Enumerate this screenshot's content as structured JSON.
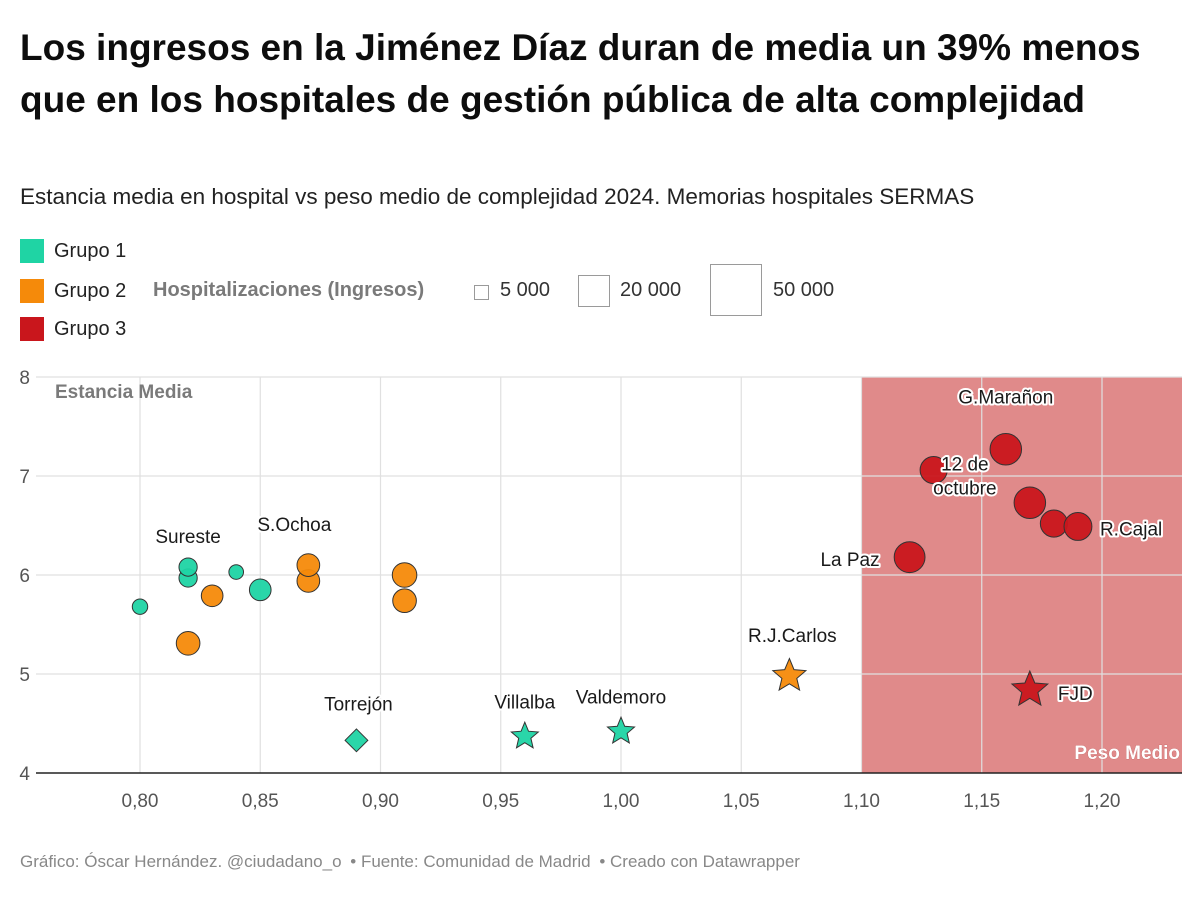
{
  "title": "Los ingresos en la Jiménez Díaz duran de media un 39% menos que en los hospitales de gestión pública de alta complejidad",
  "subtitle": "Estancia media en hospital vs peso medio de complejidad 2024. Memorias hospitales SERMAS",
  "legend": {
    "groups": [
      {
        "label": "Grupo 1",
        "color": "#1fd4a4"
      },
      {
        "label": "Grupo 2",
        "color": "#f58a0a"
      },
      {
        "label": "Grupo 3",
        "color": "#c9161c"
      }
    ],
    "size_title": "Hospitalizaciones (Ingresos)",
    "size_labels": [
      "5 000",
      "20 000",
      "50 000"
    ]
  },
  "footer": {
    "credit": "Gráfico: Óscar Hernández. @ciudadano_o",
    "source": "• Fuente: Comunidad de Madrid",
    "tool": "• Creado con Datawrapper"
  },
  "chart_data": {
    "type": "scatter",
    "ylabel": "Estancia Media",
    "xlabel": "Peso Medio",
    "xlim": [
      0.765,
      1.23
    ],
    "ylim": [
      4,
      8
    ],
    "x_ticks": [
      "0,80",
      "0,85",
      "0,90",
      "0,95",
      "1,00",
      "1,05",
      "1,10",
      "1,15",
      "1,20"
    ],
    "y_ticks": [
      "4",
      "5",
      "6",
      "7",
      "8"
    ],
    "grid": true,
    "highlight_region": {
      "x_from": 1.1,
      "x_to": 1.23,
      "y_from": 4,
      "y_to": 8,
      "color": "#e08a8a"
    },
    "points": [
      {
        "group": 1,
        "x": 0.8,
        "y": 5.68,
        "ingresos": 8000,
        "shape": "circle",
        "label": ""
      },
      {
        "group": 1,
        "x": 0.82,
        "y": 5.97,
        "ingresos": 12000,
        "shape": "circle",
        "label": ""
      },
      {
        "group": 1,
        "x": 0.82,
        "y": 6.08,
        "ingresos": 12000,
        "shape": "circle",
        "label": "Sureste"
      },
      {
        "group": 1,
        "x": 0.84,
        "y": 6.03,
        "ingresos": 7000,
        "shape": "circle",
        "label": ""
      },
      {
        "group": 1,
        "x": 0.85,
        "y": 5.85,
        "ingresos": 18000,
        "shape": "circle",
        "label": ""
      },
      {
        "group": 2,
        "x": 0.82,
        "y": 5.31,
        "ingresos": 22000,
        "shape": "circle",
        "label": ""
      },
      {
        "group": 2,
        "x": 0.83,
        "y": 5.79,
        "ingresos": 18000,
        "shape": "circle",
        "label": ""
      },
      {
        "group": 2,
        "x": 0.87,
        "y": 5.94,
        "ingresos": 20000,
        "shape": "circle",
        "label": ""
      },
      {
        "group": 2,
        "x": 0.87,
        "y": 6.1,
        "ingresos": 20000,
        "shape": "circle",
        "label": "S.Ochoa"
      },
      {
        "group": 2,
        "x": 0.91,
        "y": 6.0,
        "ingresos": 24000,
        "shape": "circle",
        "label": ""
      },
      {
        "group": 2,
        "x": 0.91,
        "y": 5.74,
        "ingresos": 22000,
        "shape": "circle",
        "label": ""
      },
      {
        "group": 1,
        "x": 0.89,
        "y": 4.33,
        "ingresos": 18000,
        "shape": "diamond",
        "label": "Torrejón"
      },
      {
        "group": 1,
        "x": 0.96,
        "y": 4.37,
        "ingresos": 20000,
        "shape": "star",
        "label": "Villalba"
      },
      {
        "group": 1,
        "x": 1.0,
        "y": 4.42,
        "ingresos": 20000,
        "shape": "star",
        "label": "Valdemoro"
      },
      {
        "group": 2,
        "x": 1.07,
        "y": 4.98,
        "ingresos": 32000,
        "shape": "star",
        "label": "R.J.Carlos"
      },
      {
        "group": 3,
        "x": 1.13,
        "y": 7.06,
        "ingresos": 30000,
        "shape": "circle",
        "label": ""
      },
      {
        "group": 3,
        "x": 1.16,
        "y": 7.27,
        "ingresos": 42000,
        "shape": "circle",
        "label": "G.Marañon"
      },
      {
        "group": 3,
        "x": 1.18,
        "y": 6.52,
        "ingresos": 30000,
        "shape": "circle",
        "label": ""
      },
      {
        "group": 3,
        "x": 1.17,
        "y": 6.73,
        "ingresos": 42000,
        "shape": "circle",
        "label": "12 de octubre"
      },
      {
        "group": 3,
        "x": 1.19,
        "y": 6.49,
        "ingresos": 32000,
        "shape": "circle",
        "label": "R.Cajal"
      },
      {
        "group": 3,
        "x": 1.12,
        "y": 6.18,
        "ingresos": 40000,
        "shape": "circle",
        "label": "La Paz"
      },
      {
        "group": 3,
        "x": 1.17,
        "y": 4.84,
        "ingresos": 38000,
        "shape": "star",
        "label": "FJD"
      }
    ]
  }
}
